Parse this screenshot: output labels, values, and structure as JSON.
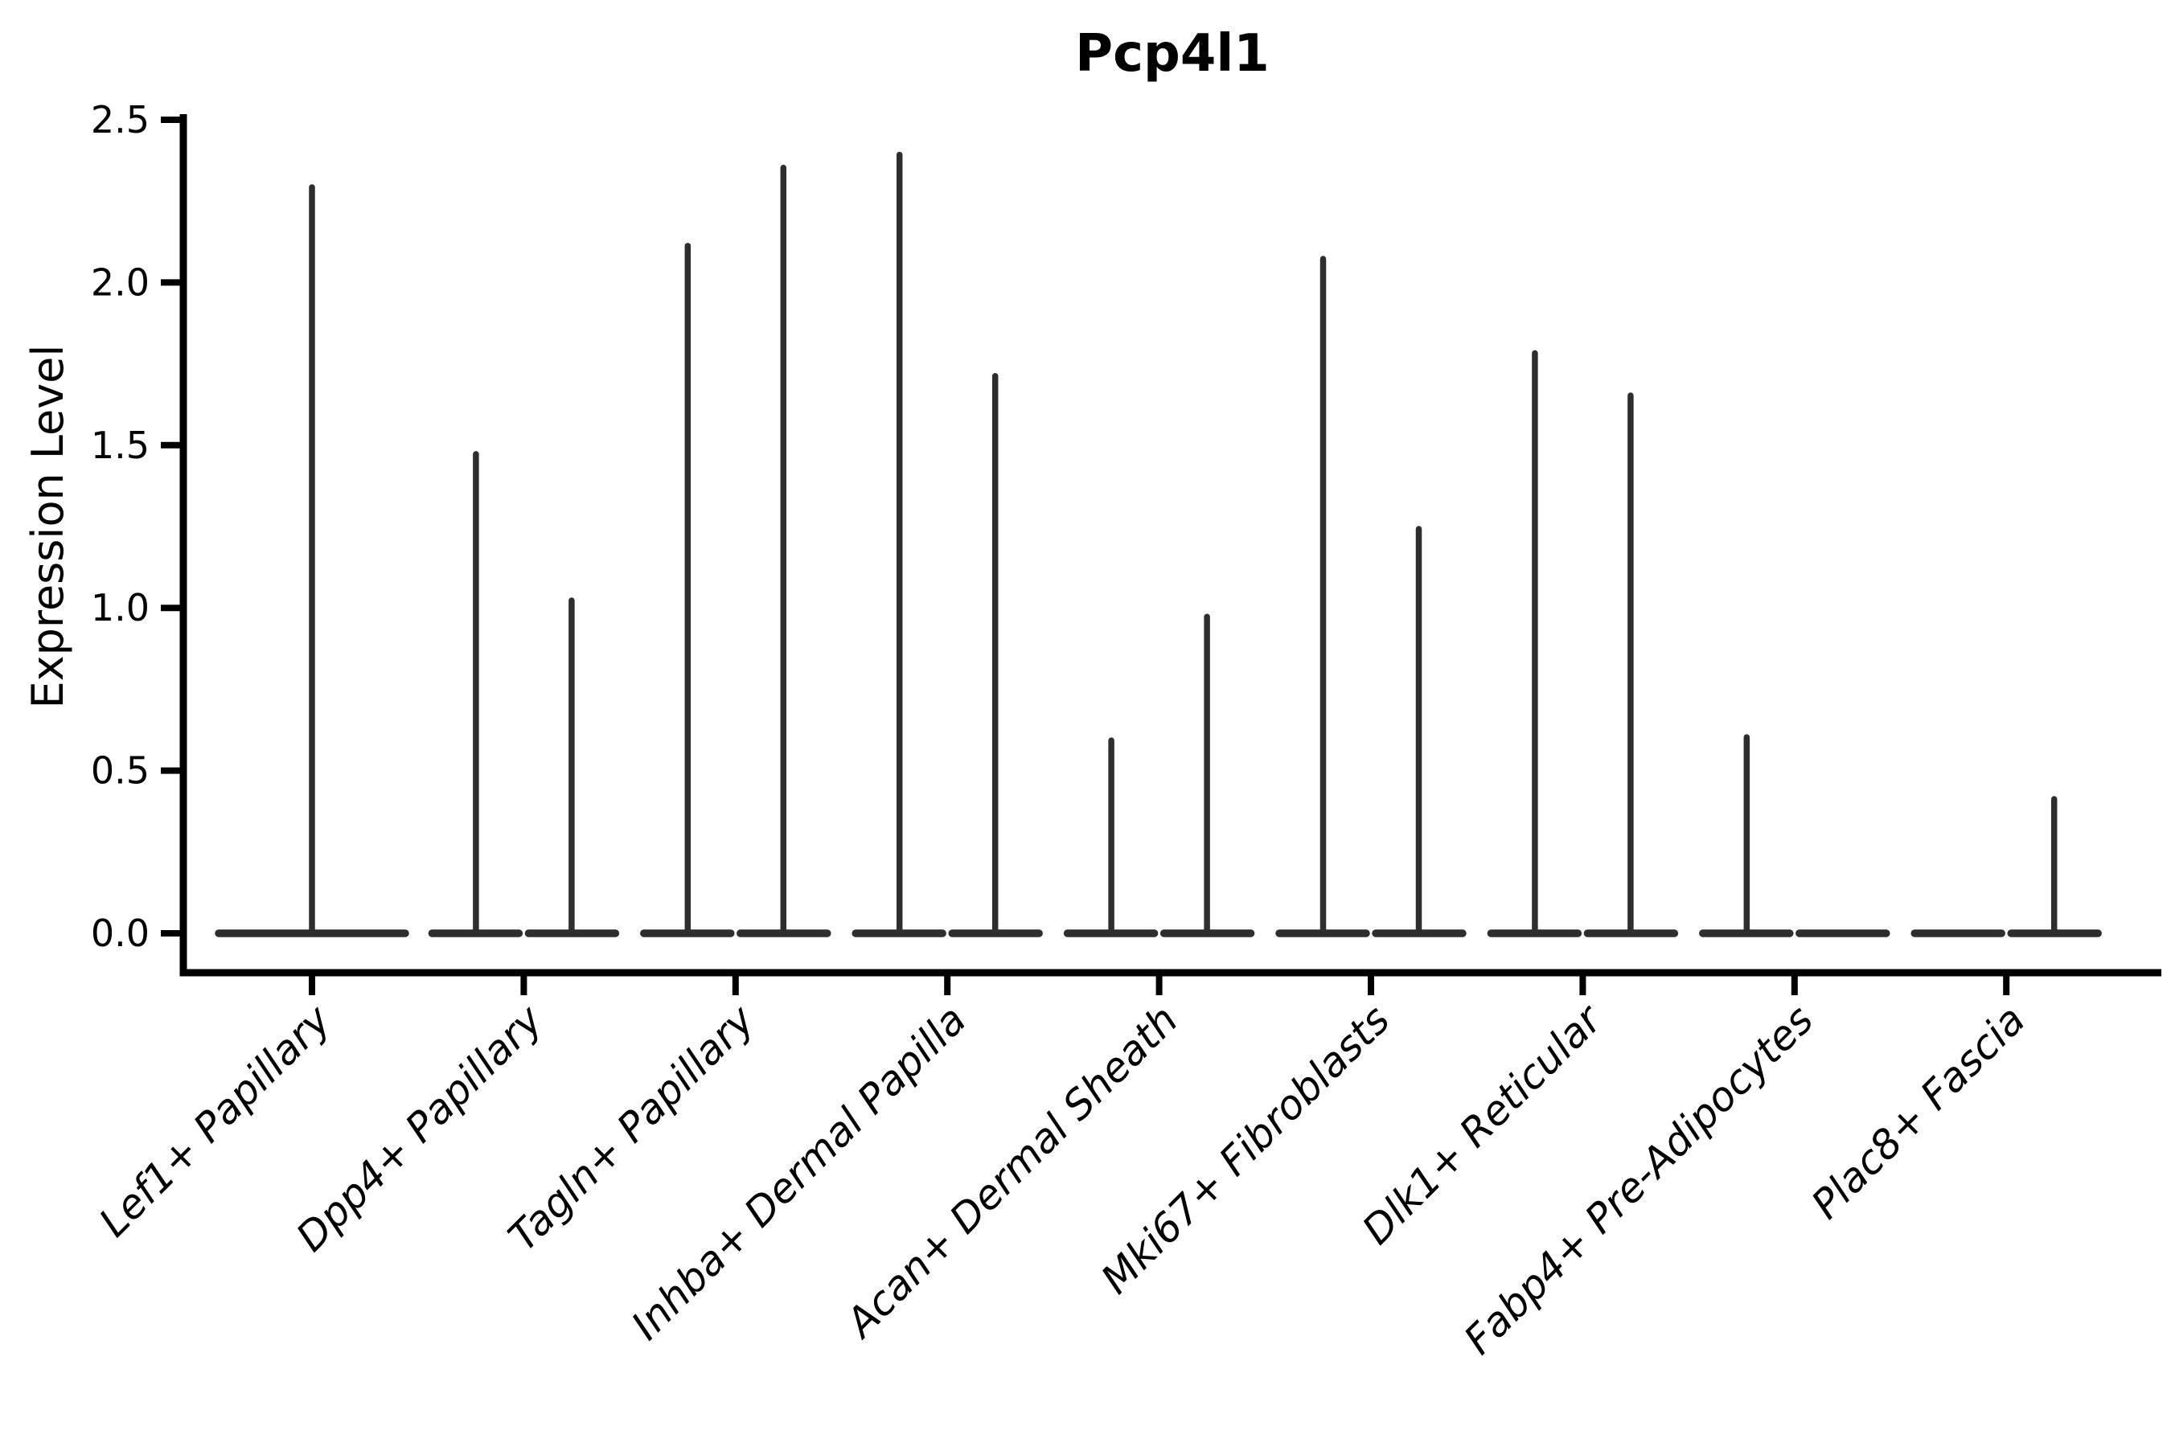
{
  "figure": {
    "background": "#ffffff"
  },
  "chart_data": {
    "type": "violin",
    "title": "Pcp4l1",
    "xlabel": "",
    "ylabel": "Expression Level",
    "yticks": [
      0.0,
      0.5,
      1.0,
      1.5,
      2.0,
      2.5
    ],
    "ylim": [
      -0.12,
      2.52
    ],
    "grid": false,
    "legend": "none",
    "tick_label_style": "italic, rotated 45deg",
    "categories": [
      "Lef1+ Papillary",
      "Dpp4+ Papillary",
      "Tagln+ Papillary",
      "Inhba+ Dermal Papilla",
      "Acan+ Dermal Sheath",
      "Mki67+ Fibroblasts",
      "Dlk1+ Reticular",
      "Fabp4+ Pre-Adipocytes",
      "Plac8+ Fascia"
    ],
    "violins": [
      {
        "category": "Lef1+ Papillary",
        "layout": "single",
        "violins": [
          {
            "side": "center",
            "max_expression": 2.3
          }
        ]
      },
      {
        "category": "Dpp4+ Papillary",
        "layout": "split",
        "violins": [
          {
            "side": "left",
            "max_expression": 1.48
          },
          {
            "side": "right",
            "max_expression": 1.03
          }
        ]
      },
      {
        "category": "Tagln+ Papillary",
        "layout": "split",
        "violins": [
          {
            "side": "left",
            "max_expression": 2.12
          },
          {
            "side": "right",
            "max_expression": 2.36
          }
        ]
      },
      {
        "category": "Inhba+ Dermal Papilla",
        "layout": "split",
        "violins": [
          {
            "side": "left",
            "max_expression": 2.4
          },
          {
            "side": "right",
            "max_expression": 1.72
          }
        ]
      },
      {
        "category": "Acan+ Dermal Sheath",
        "layout": "split",
        "violins": [
          {
            "side": "left",
            "max_expression": 0.6
          },
          {
            "side": "right",
            "max_expression": 0.98
          }
        ]
      },
      {
        "category": "Mki67+ Fibroblasts",
        "layout": "split",
        "violins": [
          {
            "side": "left",
            "max_expression": 2.08
          },
          {
            "side": "right",
            "max_expression": 1.25
          }
        ]
      },
      {
        "category": "Dlk1+ Reticular",
        "layout": "split",
        "violins": [
          {
            "side": "left",
            "max_expression": 1.79
          },
          {
            "side": "right",
            "max_expression": 1.66
          }
        ]
      },
      {
        "category": "Fabp4+ Pre-Adipocytes",
        "layout": "split",
        "violins": [
          {
            "side": "left",
            "max_expression": 0.61
          },
          {
            "side": "right",
            "max_expression": 0.0
          }
        ]
      },
      {
        "category": "Plac8+ Fascia",
        "layout": "split",
        "violins": [
          {
            "side": "left",
            "max_expression": 0.0
          },
          {
            "side": "right",
            "max_expression": 0.42
          }
        ]
      }
    ],
    "colors": {
      "violin_line": "#2e2e2e",
      "axis": "#000000",
      "text": "#000000",
      "background": "#ffffff"
    }
  }
}
